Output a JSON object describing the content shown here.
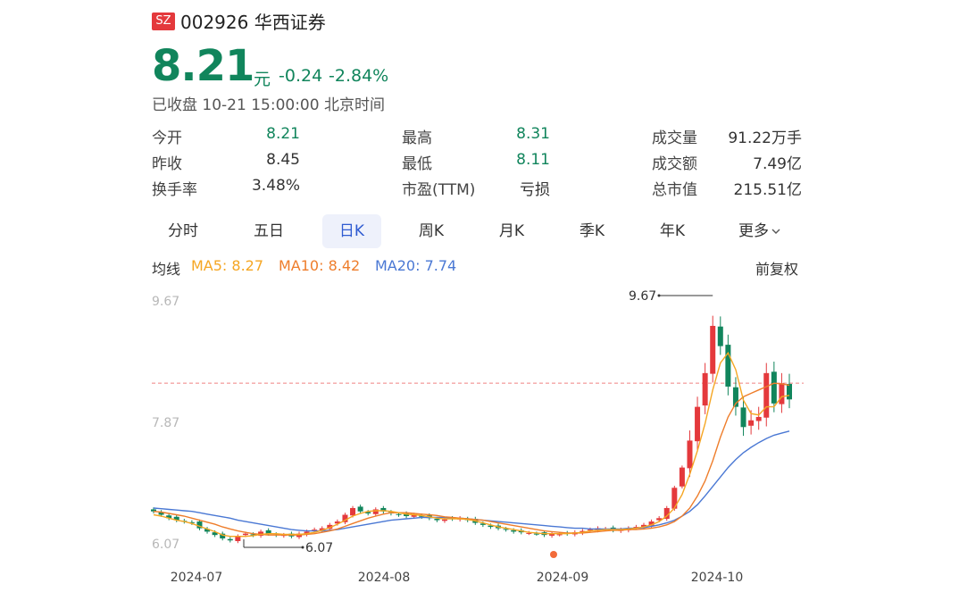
{
  "header": {
    "market_badge": "SZ",
    "code": "002926",
    "name": "华西证券",
    "price": "8.21",
    "unit": "元",
    "change": "-0.24",
    "change_pct": "-2.84%",
    "status": "已收盘 10-21 15:00:00 北京时间"
  },
  "stats": [
    {
      "label": "今开",
      "value": "8.21",
      "color": "#11855c"
    },
    {
      "label": "昨收",
      "value": "8.45",
      "color": "#333333"
    },
    {
      "label": "换手率",
      "value": "3.48%",
      "color": "#333333"
    },
    {
      "label": "最高",
      "value": "8.31",
      "color": "#11855c"
    },
    {
      "label": "最低",
      "value": "8.11",
      "color": "#11855c"
    },
    {
      "label": "市盈(TTM)",
      "value": "亏损",
      "color": "#333333"
    },
    {
      "label": "成交量",
      "value": "91.22万手",
      "color": "#333333"
    },
    {
      "label": "成交额",
      "value": "7.49亿",
      "color": "#333333"
    },
    {
      "label": "总市值",
      "value": "215.51亿",
      "color": "#333333"
    }
  ],
  "tabs": [
    "分时",
    "五日",
    "日K",
    "周K",
    "月K",
    "季K",
    "年K",
    "更多"
  ],
  "active_tab": "日K",
  "legend": {
    "label": "均线",
    "ma5": "MA5: 8.27",
    "ma10": "MA10: 8.42",
    "ma20": "MA20: 7.74",
    "adjust": "前复权"
  },
  "colors": {
    "up": "#e4393c",
    "down": "#11855c",
    "ma5": "#f5a623",
    "ma10": "#ee7d2b",
    "ma20": "#4a78d4",
    "active_tab_bg": "#eef1fb",
    "active_tab_text": "#2f5bd1"
  },
  "chart_data": {
    "type": "candlestick",
    "ylim": [
      6.07,
      9.67
    ],
    "y_ticks": [
      "9.67",
      "7.87",
      "6.07"
    ],
    "x_ticks": [
      "2024-07",
      "2024-08",
      "2024-09",
      "2024-10"
    ],
    "max_label": "9.67",
    "min_label": "6.07",
    "last_close": 8.21,
    "close": [
      6.55,
      6.5,
      6.45,
      6.42,
      6.4,
      6.38,
      6.3,
      6.25,
      6.2,
      6.15,
      6.12,
      6.18,
      6.22,
      6.2,
      6.25,
      6.22,
      6.2,
      6.2,
      6.18,
      6.22,
      6.25,
      6.28,
      6.3,
      6.35,
      6.4,
      6.5,
      6.6,
      6.55,
      6.52,
      6.58,
      6.55,
      6.52,
      6.5,
      6.48,
      6.5,
      6.47,
      6.45,
      6.42,
      6.43,
      6.44,
      6.45,
      6.42,
      6.38,
      6.35,
      6.32,
      6.3,
      6.28,
      6.25,
      6.24,
      6.23,
      6.22,
      6.2,
      6.22,
      6.21,
      6.22,
      6.24,
      6.26,
      6.28,
      6.3,
      6.29,
      6.27,
      6.28,
      6.3,
      6.32,
      6.35,
      6.4,
      6.45,
      6.6,
      6.9,
      7.2,
      7.6,
      8.1,
      8.6,
      9.3,
      9.0,
      8.4,
      8.1,
      7.8,
      7.9,
      7.95,
      8.6,
      8.15,
      8.45,
      8.21
    ],
    "ma5": [
      6.5,
      6.48,
      6.45,
      6.42,
      6.4,
      6.37,
      6.33,
      6.29,
      6.25,
      6.2,
      6.18,
      6.18,
      6.18,
      6.19,
      6.21,
      6.22,
      6.22,
      6.21,
      6.21,
      6.21,
      6.22,
      6.24,
      6.27,
      6.31,
      6.36,
      6.42,
      6.48,
      6.52,
      6.55,
      6.56,
      6.56,
      6.55,
      6.53,
      6.51,
      6.5,
      6.49,
      6.47,
      6.45,
      6.44,
      6.44,
      6.44,
      6.43,
      6.41,
      6.38,
      6.35,
      6.32,
      6.3,
      6.28,
      6.26,
      6.24,
      6.23,
      6.22,
      6.22,
      6.22,
      6.22,
      6.23,
      6.24,
      6.26,
      6.27,
      6.28,
      6.28,
      6.28,
      6.29,
      6.3,
      6.32,
      6.35,
      6.4,
      6.48,
      6.6,
      6.8,
      7.1,
      7.45,
      7.85,
      8.35,
      8.75,
      8.9,
      8.65,
      8.2,
      8.0,
      7.98,
      8.1,
      8.1,
      8.25,
      8.27
    ],
    "ma10": [
      6.55,
      6.54,
      6.52,
      6.5,
      6.48,
      6.45,
      6.42,
      6.39,
      6.36,
      6.32,
      6.29,
      6.26,
      6.24,
      6.22,
      6.21,
      6.2,
      6.2,
      6.2,
      6.2,
      6.2,
      6.21,
      6.22,
      6.24,
      6.26,
      6.29,
      6.33,
      6.37,
      6.41,
      6.45,
      6.48,
      6.51,
      6.53,
      6.53,
      6.53,
      6.52,
      6.51,
      6.5,
      6.49,
      6.47,
      6.46,
      6.45,
      6.44,
      6.43,
      6.42,
      6.4,
      6.38,
      6.36,
      6.34,
      6.32,
      6.3,
      6.28,
      6.26,
      6.25,
      6.24,
      6.23,
      6.23,
      6.23,
      6.24,
      6.25,
      6.26,
      6.27,
      6.27,
      6.28,
      6.28,
      6.29,
      6.3,
      6.32,
      6.35,
      6.4,
      6.48,
      6.6,
      6.78,
      7.0,
      7.3,
      7.65,
      7.95,
      8.15,
      8.25,
      8.3,
      8.35,
      8.4,
      8.45,
      8.44,
      8.42
    ],
    "ma20": [
      6.6,
      6.59,
      6.58,
      6.57,
      6.56,
      6.55,
      6.53,
      6.51,
      6.49,
      6.47,
      6.45,
      6.42,
      6.4,
      6.38,
      6.36,
      6.34,
      6.32,
      6.3,
      6.28,
      6.27,
      6.26,
      6.26,
      6.26,
      6.27,
      6.28,
      6.3,
      6.32,
      6.34,
      6.36,
      6.38,
      6.4,
      6.42,
      6.43,
      6.44,
      6.45,
      6.46,
      6.46,
      6.46,
      6.46,
      6.45,
      6.45,
      6.44,
      6.43,
      6.42,
      6.41,
      6.4,
      6.39,
      6.38,
      6.37,
      6.36,
      6.35,
      6.34,
      6.33,
      6.32,
      6.31,
      6.3,
      6.3,
      6.29,
      6.29,
      6.29,
      6.29,
      6.29,
      6.3,
      6.3,
      6.31,
      6.33,
      6.35,
      6.38,
      6.42,
      6.48,
      6.55,
      6.65,
      6.78,
      6.92,
      7.06,
      7.2,
      7.32,
      7.42,
      7.5,
      7.57,
      7.63,
      7.68,
      7.71,
      7.74
    ]
  }
}
